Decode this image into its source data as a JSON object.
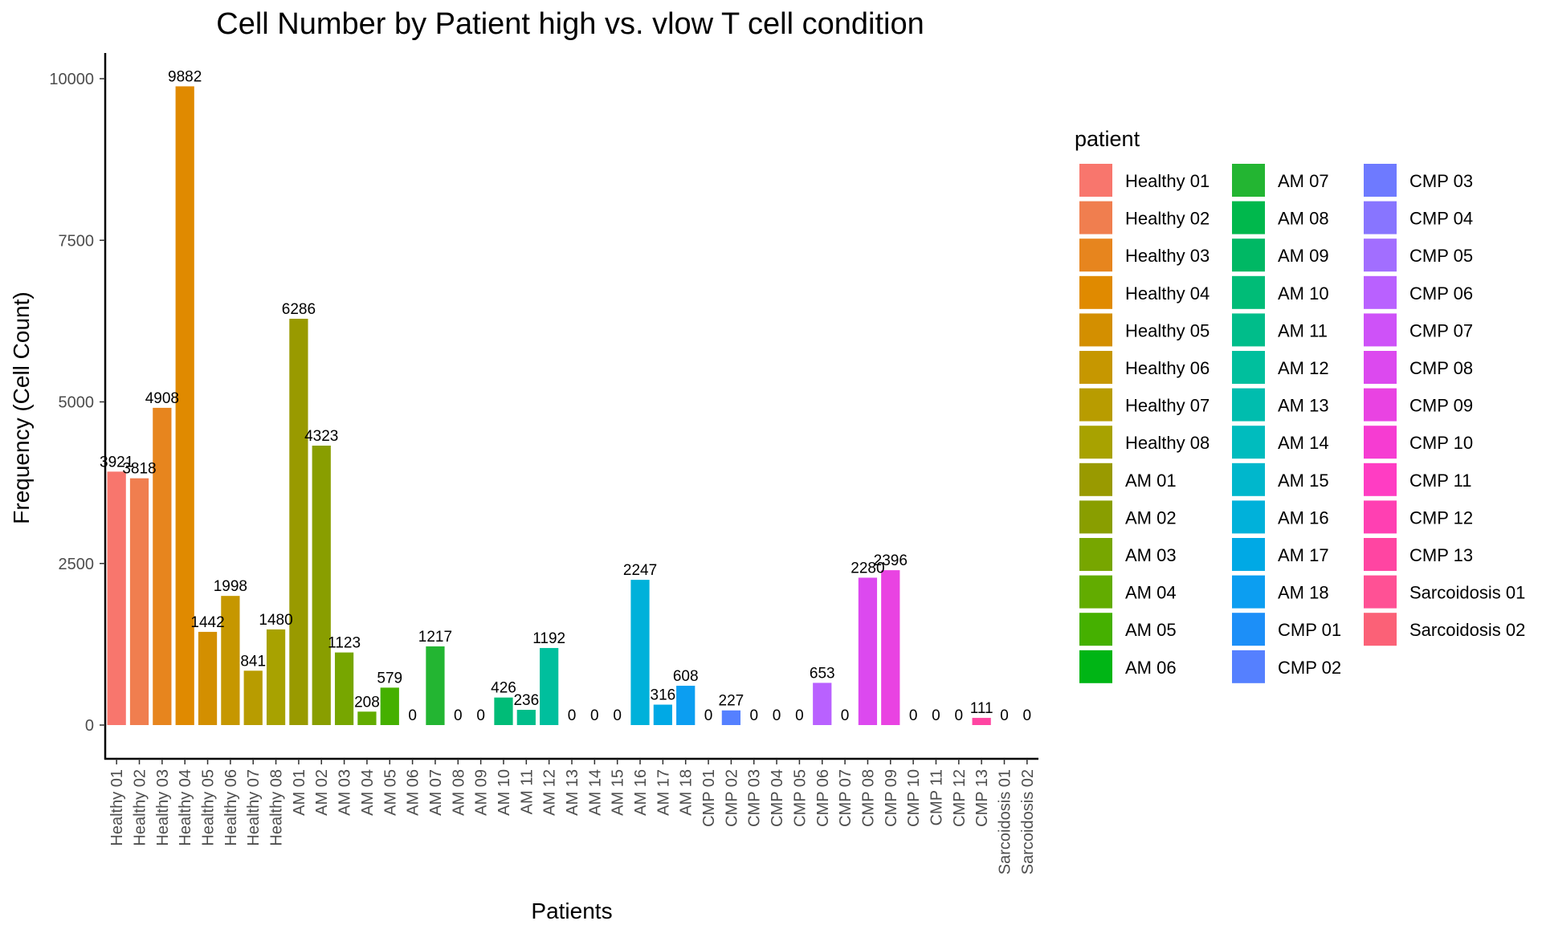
{
  "chart_data": {
    "type": "bar",
    "title": "Cell Number by Patient high vs. vlow T cell condition",
    "xlabel": "Patients",
    "ylabel": "Frequency (Cell Count)",
    "ylim": [
      -500,
      10400
    ],
    "yticks": [
      0,
      2500,
      5000,
      7500,
      10000
    ],
    "grid": false,
    "legend": {
      "title": "patient",
      "placement": "right",
      "columns": 3
    },
    "categories": [
      "Healthy 01",
      "Healthy 02",
      "Healthy 03",
      "Healthy 04",
      "Healthy 05",
      "Healthy 06",
      "Healthy 07",
      "Healthy 08",
      "AM 01",
      "AM 02",
      "AM 03",
      "AM 04",
      "AM 05",
      "AM 06",
      "AM 07",
      "AM 08",
      "AM 09",
      "AM 10",
      "AM 11",
      "AM 12",
      "AM 13",
      "AM 14",
      "AM 15",
      "AM 16",
      "AM 17",
      "AM 18",
      "CMP 01",
      "CMP 02",
      "CMP 03",
      "CMP 04",
      "CMP 05",
      "CMP 06",
      "CMP 07",
      "CMP 08",
      "CMP 09",
      "CMP 10",
      "CMP 11",
      "CMP 12",
      "CMP 13",
      "Sarcoidosis 01",
      "Sarcoidosis 02"
    ],
    "values": [
      3921,
      3818,
      4908,
      9882,
      1442,
      1998,
      841,
      1480,
      6286,
      4323,
      1123,
      208,
      579,
      0,
      1217,
      0,
      0,
      426,
      236,
      1192,
      0,
      0,
      0,
      2247,
      316,
      608,
      0,
      227,
      0,
      0,
      0,
      653,
      0,
      2280,
      2396,
      0,
      0,
      0,
      111,
      0,
      0
    ],
    "colors": [
      "#F8766D",
      "#F07E4F",
      "#E7851E",
      "#E08A00",
      "#D38F00",
      "#C69700",
      "#B89C00",
      "#A8A200",
      "#999A00",
      "#899E00",
      "#77A600",
      "#62AC00",
      "#45B000",
      "#00B515",
      "#23B532",
      "#00B84C",
      "#00B864",
      "#00BC77",
      "#00BD8A",
      "#00BF9D",
      "#00BDAE",
      "#00BCBE",
      "#00B7CC",
      "#00B1DA",
      "#00A9E5",
      "#0C9EF1",
      "#1C8FF8",
      "#5580FF",
      "#6E7AFF",
      "#8875FF",
      "#A26EFF",
      "#B961FF",
      "#CE52F8",
      "#DC49EF",
      "#E943E2",
      "#F63CD2",
      "#FF3DC3",
      "#FF40B2",
      "#FF45A2",
      "#FF5195",
      "#FB6177"
    ]
  }
}
